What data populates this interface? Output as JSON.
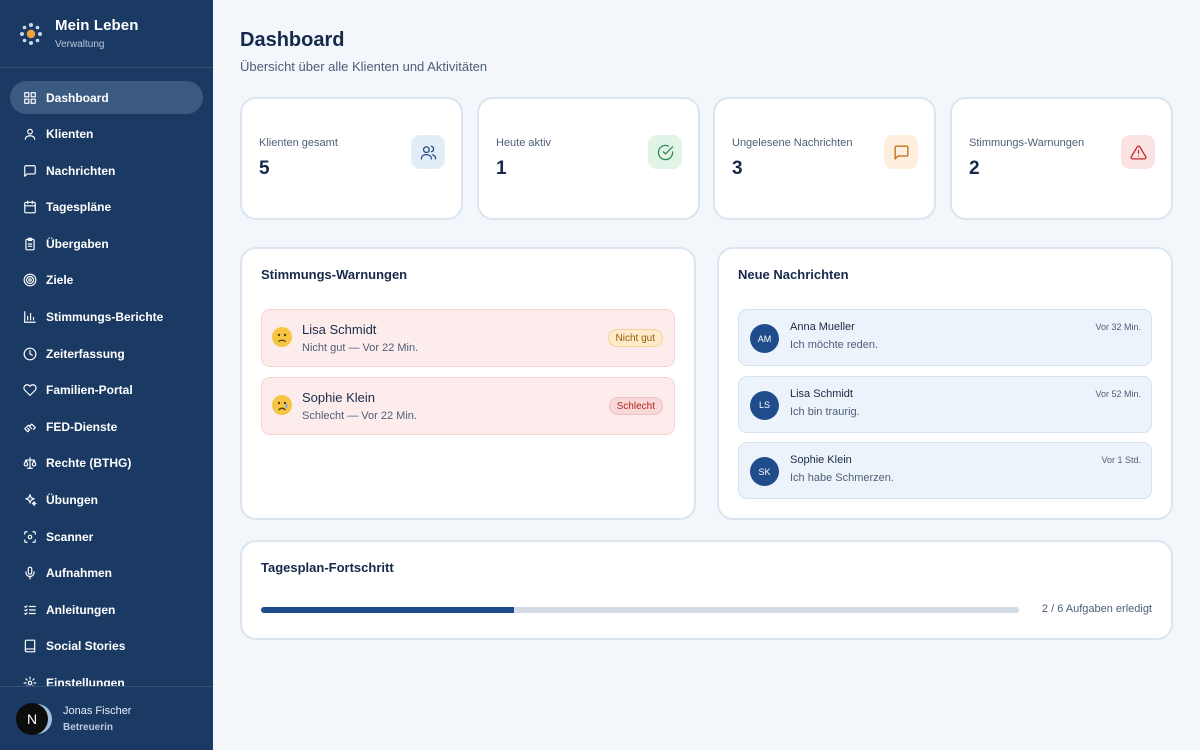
{
  "brand": {
    "title": "Mein Leben",
    "subtitle": "Verwaltung"
  },
  "nav": [
    {
      "label": "Dashboard",
      "icon": "dashboard-icon",
      "active": true
    },
    {
      "label": "Klienten",
      "icon": "user-icon"
    },
    {
      "label": "Nachrichten",
      "icon": "message-icon"
    },
    {
      "label": "Tagespläne",
      "icon": "calendar-icon"
    },
    {
      "label": "Übergaben",
      "icon": "clipboard-icon"
    },
    {
      "label": "Ziele",
      "icon": "target-icon"
    },
    {
      "label": "Stimmungs-Berichte",
      "icon": "bar-chart-icon"
    },
    {
      "label": "Zeiterfassung",
      "icon": "clock-icon"
    },
    {
      "label": "Familien-Portal",
      "icon": "heart-icon"
    },
    {
      "label": "FED-Dienste",
      "icon": "handshake-icon"
    },
    {
      "label": "Rechte (BTHG)",
      "icon": "scale-icon"
    },
    {
      "label": "Übungen",
      "icon": "sparkles-icon"
    },
    {
      "label": "Scanner",
      "icon": "scan-icon"
    },
    {
      "label": "Aufnahmen",
      "icon": "microphone-icon"
    },
    {
      "label": "Anleitungen",
      "icon": "checklist-icon"
    },
    {
      "label": "Social Stories",
      "icon": "book-icon"
    },
    {
      "label": "Einstellungen",
      "icon": "gear-icon"
    }
  ],
  "user": {
    "initial": "N",
    "name": "Jonas Fischer",
    "role": "Betreuerin"
  },
  "header": {
    "title": "Dashboard",
    "subtitle": "Übersicht über alle Klienten und Aktivitäten"
  },
  "stats": [
    {
      "label": "Klienten gesamt",
      "value": "5",
      "icon": "users-icon",
      "icon_bg": "#e3edf8",
      "icon_color": "#1f4c8a"
    },
    {
      "label": "Heute aktiv",
      "value": "1",
      "icon": "check-circle-icon",
      "icon_bg": "#e2f3e8",
      "icon_color": "#2f8a4d"
    },
    {
      "label": "Ungelesene Nachrichten",
      "value": "3",
      "icon": "message-square-icon",
      "icon_bg": "#fdeedd",
      "icon_color": "#c0670c"
    },
    {
      "label": "Stimmungs-Warnungen",
      "value": "2",
      "icon": "alert-triangle-icon",
      "icon_bg": "#fbe3e3",
      "icon_color": "#c62828"
    }
  ],
  "warnings": {
    "title": "Stimmungs-Warnungen",
    "items": [
      {
        "emoji": "worried-face-icon",
        "name": "Lisa Schmidt",
        "detail": "Nicht gut — Vor 22 Min.",
        "badge": "Nicht gut",
        "badge_style": "orange"
      },
      {
        "emoji": "crying-face-icon",
        "name": "Sophie Klein",
        "detail": "Schlecht — Vor 22 Min.",
        "badge": "Schlecht",
        "badge_style": "red"
      }
    ]
  },
  "messages": {
    "title": "Neue Nachrichten",
    "items": [
      {
        "initials": "AM",
        "name": "Anna Mueller",
        "text": "Ich möchte reden.",
        "time": "Vor 32 Min."
      },
      {
        "initials": "LS",
        "name": "Lisa Schmidt",
        "text": "Ich bin traurig.",
        "time": "Vor 52 Min."
      },
      {
        "initials": "SK",
        "name": "Sophie Klein",
        "text": "Ich habe Schmerzen.",
        "time": "Vor 1 Std."
      }
    ]
  },
  "progress": {
    "title": "Tagesplan-Fortschritt",
    "done": 2,
    "total": 6,
    "label": "2 / 6 Aufgaben erledigt"
  }
}
